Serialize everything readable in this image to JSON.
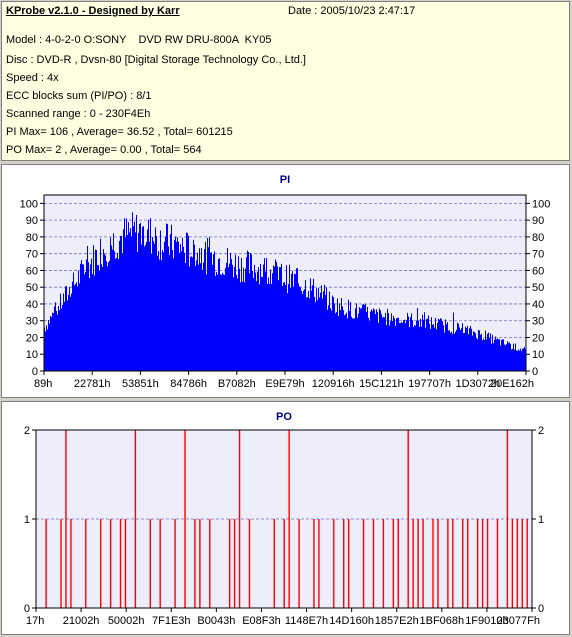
{
  "header": {
    "title": "KProbe v2.1.0 - Designed by Karr",
    "date": "Date : 2005/10/23 2:47:17",
    "lines": [
      "Model : 4-0-2-0 O:SONY    DVD RW DRU-800A  KY05",
      "Disc : DVD-R , Dvsn-80 [Digital Storage Technology Co., Ltd.]",
      "Speed : 4x",
      "ECC blocks sum (PI/PO) : 8/1",
      "Scanned range : 0 - 230F4Eh",
      "PI Max= 106 , Average= 36.52 , Total= 601215",
      "PO Max= 2 , Average= 0.00 , Total= 564"
    ]
  },
  "chart_data": [
    {
      "type": "bar",
      "title": "PI",
      "color": "#0000ff",
      "ylim": [
        0,
        105
      ],
      "yticks": [
        0,
        10,
        20,
        30,
        40,
        50,
        60,
        70,
        80,
        90,
        100
      ],
      "xticks": [
        "89h",
        "22781h",
        "53851h",
        "84786h",
        "B7082h",
        "E9E79h",
        "120916h",
        "15C121h",
        "197707h",
        "1D3072h",
        "20E162h"
      ],
      "grid": true,
      "envelope_x": [
        0,
        4,
        8,
        12,
        16,
        20,
        24,
        28,
        32,
        36,
        40,
        45,
        50,
        55,
        60,
        65,
        70,
        75,
        80,
        85,
        90,
        95,
        100
      ],
      "envelope_y": [
        28,
        46,
        64,
        78,
        86,
        90,
        84,
        80,
        75,
        72,
        68,
        66,
        60,
        54,
        43,
        38,
        35,
        33,
        31,
        28,
        24,
        18,
        13
      ],
      "peak_max": 106
    },
    {
      "type": "bar",
      "title": "PO",
      "color": "#ff0000",
      "ylim": [
        0,
        2
      ],
      "yticks": [
        0,
        1,
        2
      ],
      "xticks": [
        "17h",
        "21002h",
        "50002h",
        "7F1E3h",
        "B0043h",
        "E08F3h",
        "1148E7h",
        "14D160h",
        "1857E2h",
        "1BF068h",
        "1F9010h",
        "23077Fh"
      ],
      "grid": true,
      "value_two_at": [
        6,
        20,
        30,
        41,
        51,
        75,
        95
      ],
      "value_one_at": [
        2,
        5,
        7,
        10,
        13,
        15,
        17,
        18,
        23,
        25,
        28,
        32,
        33,
        35,
        39,
        40,
        43,
        48,
        50,
        53,
        56,
        57,
        60,
        62,
        63,
        66,
        68,
        70,
        72,
        73,
        76,
        77,
        78,
        80,
        81,
        83,
        84,
        86,
        87,
        89,
        90,
        91,
        93,
        96,
        97,
        98,
        99
      ]
    }
  ]
}
